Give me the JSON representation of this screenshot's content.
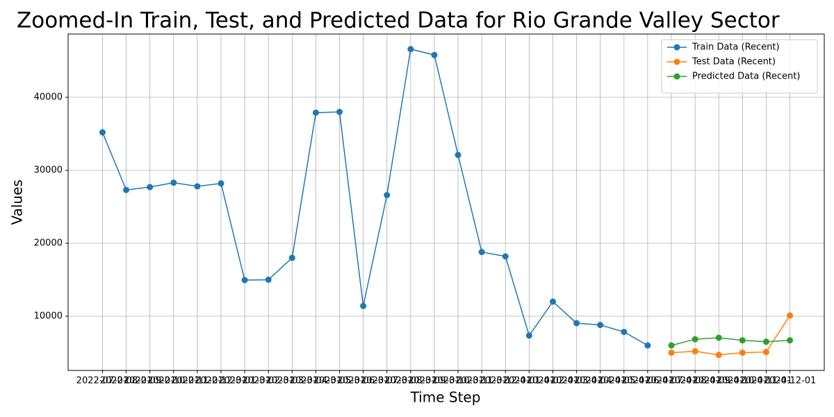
{
  "chart_data": {
    "type": "line",
    "title": "Zoomed-In Train, Test, and Predicted Data for Rio Grande Valley Sector",
    "xlabel": "Time Step",
    "ylabel": "Values",
    "categories": [
      "2022-07-01",
      "2022-08-01",
      "2022-09-01",
      "2022-10-01",
      "2022-11-01",
      "2022-12-01",
      "2023-01-01",
      "2023-02-01",
      "2023-03-01",
      "2023-04-01",
      "2023-05-01",
      "2023-06-01",
      "2023-07-01",
      "2023-08-01",
      "2023-09-01",
      "2023-10-01",
      "2023-11-01",
      "2023-12-01",
      "2024-01-01",
      "2024-02-01",
      "2024-03-01",
      "2024-04-01",
      "2024-05-01",
      "2024-06-01",
      "2024-07-01",
      "2024-08-01",
      "2024-09-01",
      "2024-10-01",
      "2024-11-01",
      "2024-12-01"
    ],
    "series": [
      {
        "name": "Train Data (Recent)",
        "color": "#1f77b4",
        "values": [
          35200,
          27300,
          27700,
          28300,
          27800,
          28200,
          14950,
          15000,
          18000,
          37900,
          38000,
          11400,
          26600,
          46600,
          45800,
          32100,
          18800,
          18200,
          7350,
          12000,
          9050,
          8800,
          7850,
          6000,
          null,
          null,
          null,
          null,
          null,
          null
        ]
      },
      {
        "name": "Test Data (Recent)",
        "color": "#ff7f0e",
        "values": [
          null,
          null,
          null,
          null,
          null,
          null,
          null,
          null,
          null,
          null,
          null,
          null,
          null,
          null,
          null,
          null,
          null,
          null,
          null,
          null,
          null,
          null,
          null,
          null,
          5000,
          5200,
          4700,
          5000,
          5100,
          10100
        ]
      },
      {
        "name": "Predicted Data (Recent)",
        "color": "#2ca02c",
        "values": [
          null,
          null,
          null,
          null,
          null,
          null,
          null,
          null,
          null,
          null,
          null,
          null,
          null,
          null,
          null,
          null,
          null,
          null,
          null,
          null,
          null,
          null,
          null,
          null,
          6000,
          6850,
          7050,
          6700,
          6500,
          6700
        ]
      }
    ],
    "ylim": [
      2570,
      48670
    ],
    "yticks": [
      10000,
      20000,
      30000,
      40000
    ],
    "grid": true,
    "legend": "upper-right"
  }
}
